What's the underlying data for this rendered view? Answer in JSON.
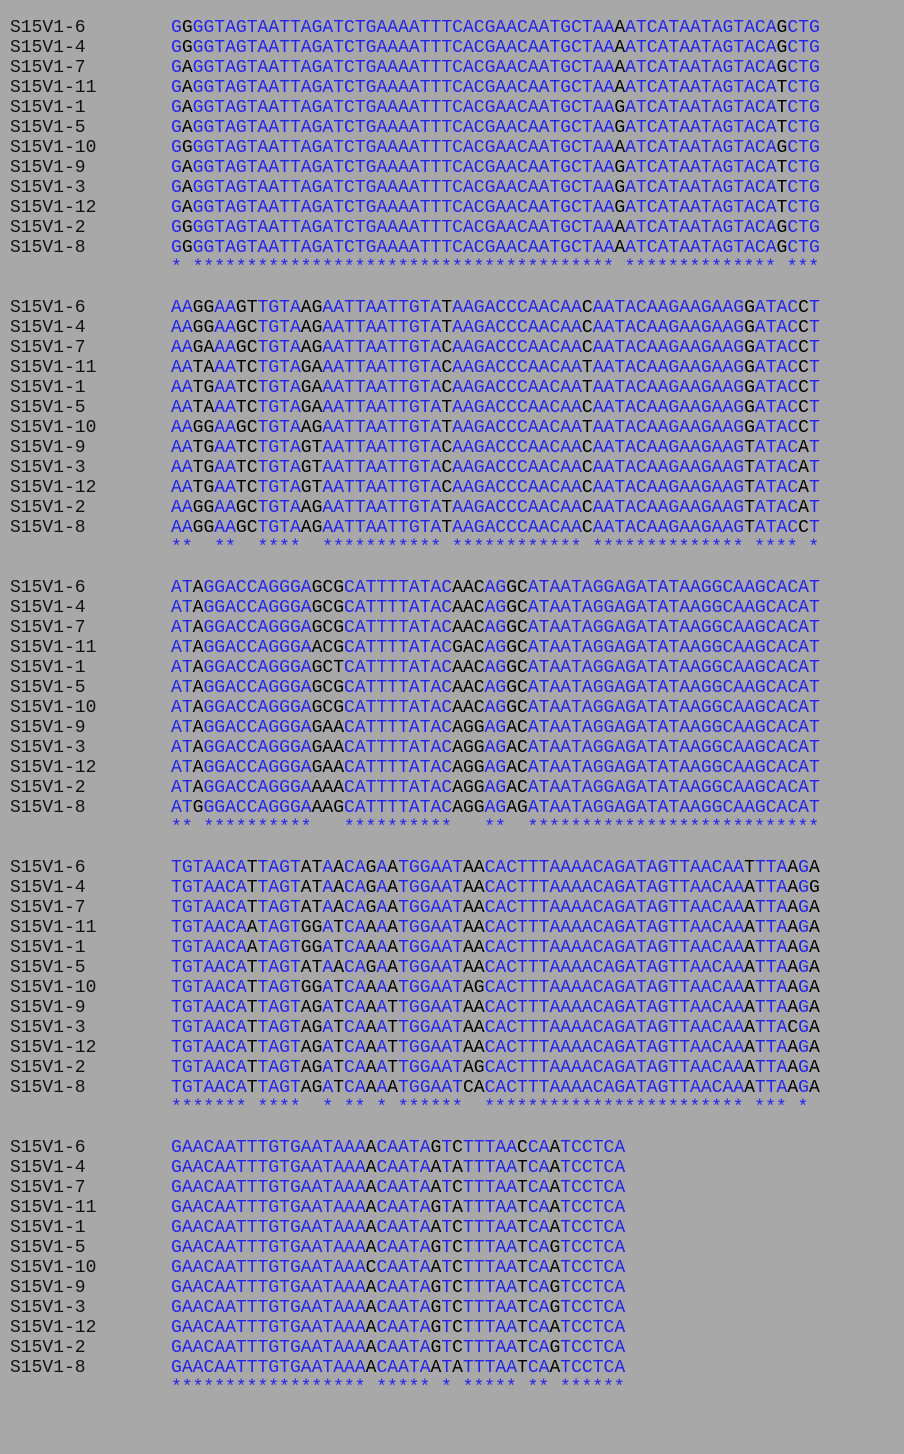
{
  "colors": {
    "background": "#a8a8a8",
    "conserved": "#2222ee",
    "variable": "#000000",
    "label": "#111111"
  },
  "labels": [
    "S15V1-6",
    "S15V1-4",
    "S15V1-7",
    "S15V1-11",
    "S15V1-1",
    "S15V1-5",
    "S15V1-10",
    "S15V1-9",
    "S15V1-3",
    "S15V1-12",
    "S15V1-2",
    "S15V1-8"
  ],
  "blocks": [
    {
      "seqs": [
        "GGGGTAGTAATTAGATCTGAAAATTTCACGAACAATGCTAAAATCATAATAGTACAGCTG",
        "GGGGTAGTAATTAGATCTGAAAATTTCACGAACAATGCTAAAATCATAATAGTACAGCTG",
        "GAGGTAGTAATTAGATCTGAAAATTTCACGAACAATGCTAAAATCATAATAGTACAGCTG",
        "GAGGTAGTAATTAGATCTGAAAATTTCACGAACAATGCTAAAATCATAATAGTACATCTG",
        "GAGGTAGTAATTAGATCTGAAAATTTCACGAACAATGCTAAGATCATAATAGTACATCTG",
        "GAGGTAGTAATTAGATCTGAAAATTTCACGAACAATGCTAAGATCATAATAGTACATCTG",
        "GGGGTAGTAATTAGATCTGAAAATTTCACGAACAATGCTAAAATCATAATAGTACAGCTG",
        "GAGGTAGTAATTAGATCTGAAAATTTCACGAACAATGCTAAGATCATAATAGTACATCTG",
        "GAGGTAGTAATTAGATCTGAAAATTTCACGAACAATGCTAAGATCATAATAGTACATCTG",
        "GAGGTAGTAATTAGATCTGAAAATTTCACGAACAATGCTAAGATCATAATAGTACATCTG",
        "GGGGTAGTAATTAGATCTGAAAATTTCACGAACAATGCTAAAATCATAATAGTACAGCTG",
        "GGGGTAGTAATTAGATCTGAAAATTTCACGAACAATGCTAAAATCATAATAGTACAGCTG"
      ],
      "conservation": "* *************************************** ************** ***"
    },
    {
      "seqs": [
        "AAGGAAGTTGTAAGAATTAATTGTATAAGACCCAACAACAATACAAGAAGAAGGATACCT",
        "AAGGAAGCTGTAAGAATTAATTGTATAAGACCCAACAACAATACAAGAAGAAGGATACCT",
        "AAGAAAGCTGTAAGAATTAATTGTACAAGACCCAACAACAATACAAGAAGAAGGATACCT",
        "AATAAATCTGTAGAAATTAATTGTACAAGACCCAACAATAATACAAGAAGAAGGATACCT",
        "AATGAATCTGTAGAAATTAATTGTACAAGACCCAACAATAATACAAGAAGAAGGATACCT",
        "AATAAATCTGTAGAAATTAATTGTATAAGACCCAACAACAATACAAGAAGAAGGATACCT",
        "AAGGAAGCTGTAAGAATTAATTGTATAAGACCCAACAATAATACAAGAAGAAGGATACCT",
        "AATGAATCTGTAGTAATTAATTGTACAAGACCCAACAACAATACAAGAAGAAGTATACAT",
        "AATGAATCTGTAGTAATTAATTGTACAAGACCCAACAACAATACAAGAAGAAGTATACAT",
        "AATGAATCTGTAGTAATTAATTGTACAAGACCCAACAACAATACAAGAAGAAGTATACAT",
        "AAGGAAGCTGTAAGAATTAATTGTATAAGACCCAACAACAATACAAGAAGAAGTATACAT",
        "AAGGAAGCTGTAAGAATTAATTGTATAAGACCCAACAACAATACAAGAAGAAGTATACCT"
      ],
      "conservation": "**  **  ****  *********** ************ ************** **** *"
    },
    {
      "seqs": [
        "ATAGGACCAGGGAGCGCATTTTATACAACAGGCATAATAGGAGATATAAGGCAAGCACAT",
        "ATAGGACCAGGGAGCGCATTTTATACAACAGGCATAATAGGAGATATAAGGCAAGCACAT",
        "ATAGGACCAGGGAGCGCATTTTATACAACAGGCATAATAGGAGATATAAGGCAAGCACAT",
        "ATAGGACCAGGGAACGCATTTTATACGACAGGCATAATAGGAGATATAAGGCAAGCACAT",
        "ATAGGACCAGGGAGCTCATTTTATACAACAGGCATAATAGGAGATATAAGGCAAGCACAT",
        "ATAGGACCAGGGAGCGCATTTTATACAACAGGCATAATAGGAGATATAAGGCAAGCACAT",
        "ATAGGACCAGGGAGCGCATTTTATACAACAGGCATAATAGGAGATATAAGGCAAGCACAT",
        "ATAGGACCAGGGAGAACATTTTATACAGGAGACATAATAGGAGATATAAGGCAAGCACAT",
        "ATAGGACCAGGGAGAACATTTTATACAGGAGACATAATAGGAGATATAAGGCAAGCACAT",
        "ATAGGACCAGGGAGAACATTTTATACAGGAGACATAATAGGAGATATAAGGCAAGCACAT",
        "ATAGGACCAGGGAAAACATTTTATACAGGAGACATAATAGGAGATATAAGGCAAGCACAT",
        "ATGGGACCAGGGAAAGCATTTTATACAGGAGAGATAATAGGAGATATAAGGCAAGCACAT"
      ],
      "conservation": "** **********   **********   **  ***************************"
    },
    {
      "seqs": [
        "TGTAACATTAGTATAACAGAATGGAATAACACTTTAAAACAGATAGTTAACAATTTAAGA",
        "TGTAACATTAGTATAACAGAATGGAATAACACTTTAAAACAGATAGTTAACAAATTAAGG",
        "TGTAACATTAGTATAACAGAATGGAATAACACTTTAAAACAGATAGTTAACAAATTAAGA",
        "TGTAACAATAGTGGATCAAAATGGAATAACACTTTAAAACAGATAGTTAACAAATTAAGA",
        "TGTAACAATAGTGGATCAAAATGGAATAACACTTTAAAACAGATAGTTAACAAATTAAGA",
        "TGTAACATTAGTATAACAGAATGGAATAACACTTTAAAACAGATAGTTAACAAATTAAGA",
        "TGTAACATTAGTGGATCAAAATGGAATAGCACTTTAAAACAGATAGTTAACAAATTAAGA",
        "TGTAACATTAGTAGATCAAATTGGAATAACACTTTAAAACAGATAGTTAACAAATTAAGA",
        "TGTAACATTAGTAGATCAAATTGGAATAACACTTTAAAACAGATAGTTAACAAATTACGA",
        "TGTAACATTAGTAGATCAAATTGGAATAACACTTTAAAACAGATAGTTAACAAATTAAGA",
        "TGTAACATTAGTAGATCAAATTGGAATAGCACTTTAAAACAGATAGTTAACAAATTAAGA",
        "TGTAACATTAGTAGATCAAAATGGAATCACACTTTAAAACAGATAGTTAACAAATTAAGA"
      ],
      "conservation": "******* ****  * ** * ******  ************************ *** * "
    },
    {
      "seqs": [
        "GAACAATTTGTGAATAAAACAATAGTCTTTAACCAATCCTCA",
        "GAACAATTTGTGAATAAAACAATAATATTTAATCAATCCTCA",
        "GAACAATTTGTGAATAAAACAATAATCTTTAATCAATCCTCA",
        "GAACAATTTGTGAATAAAACAATAGTATTTAATCAATCCTCA",
        "GAACAATTTGTGAATAAAACAATAATCTTTAATCAATCCTCA",
        "GAACAATTTGTGAATAAAACAATAGTCTTTAATCAGTCCTCA",
        "GAACAATTTGTGAATAAACCAATAATCTTTAATCAATCCTCA",
        "GAACAATTTGTGAATAAAACAATAGTCTTTAATCAGTCCTCA",
        "GAACAATTTGTGAATAAAACAATAGTCTTTAATCAGTCCTCA",
        "GAACAATTTGTGAATAAAACAATAGTCTTTAATCAATCCTCA",
        "GAACAATTTGTGAATAAAACAATAGTCTTTAATCAGTCCTCA",
        "GAACAATTTGTGAATAAAACAATAATATTTAATCAATCCTCA"
      ],
      "conservation": "****************** ***** * ***** ** ******"
    }
  ]
}
